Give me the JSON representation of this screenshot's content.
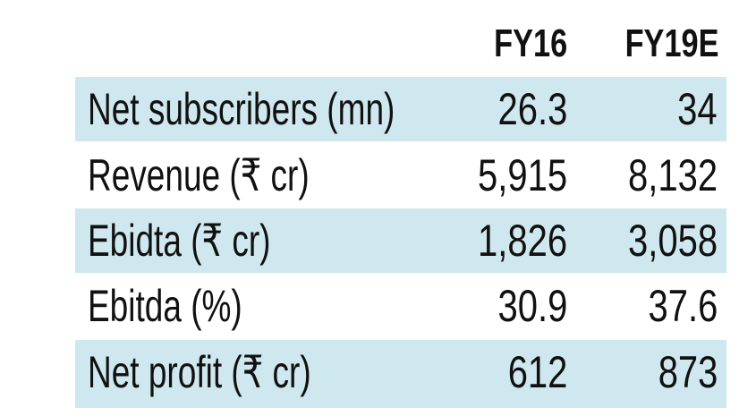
{
  "table": {
    "columns": [
      "FY16",
      "FY19E"
    ],
    "rows": [
      {
        "label": "Net subscribers (mn)",
        "values": [
          "26.3",
          "34"
        ]
      },
      {
        "label": "Revenue (₹ cr)",
        "values": [
          "5,915",
          "8,132"
        ]
      },
      {
        "label": "Ebidta (₹ cr)",
        "values": [
          "1,826",
          "3,058"
        ]
      },
      {
        "label": "Ebitda (%)",
        "values": [
          "30.9",
          "37.6"
        ]
      },
      {
        "label": "Net profit (₹ cr)",
        "values": [
          "612",
          "873"
        ]
      }
    ],
    "shade_color": "#cfe8ef"
  }
}
